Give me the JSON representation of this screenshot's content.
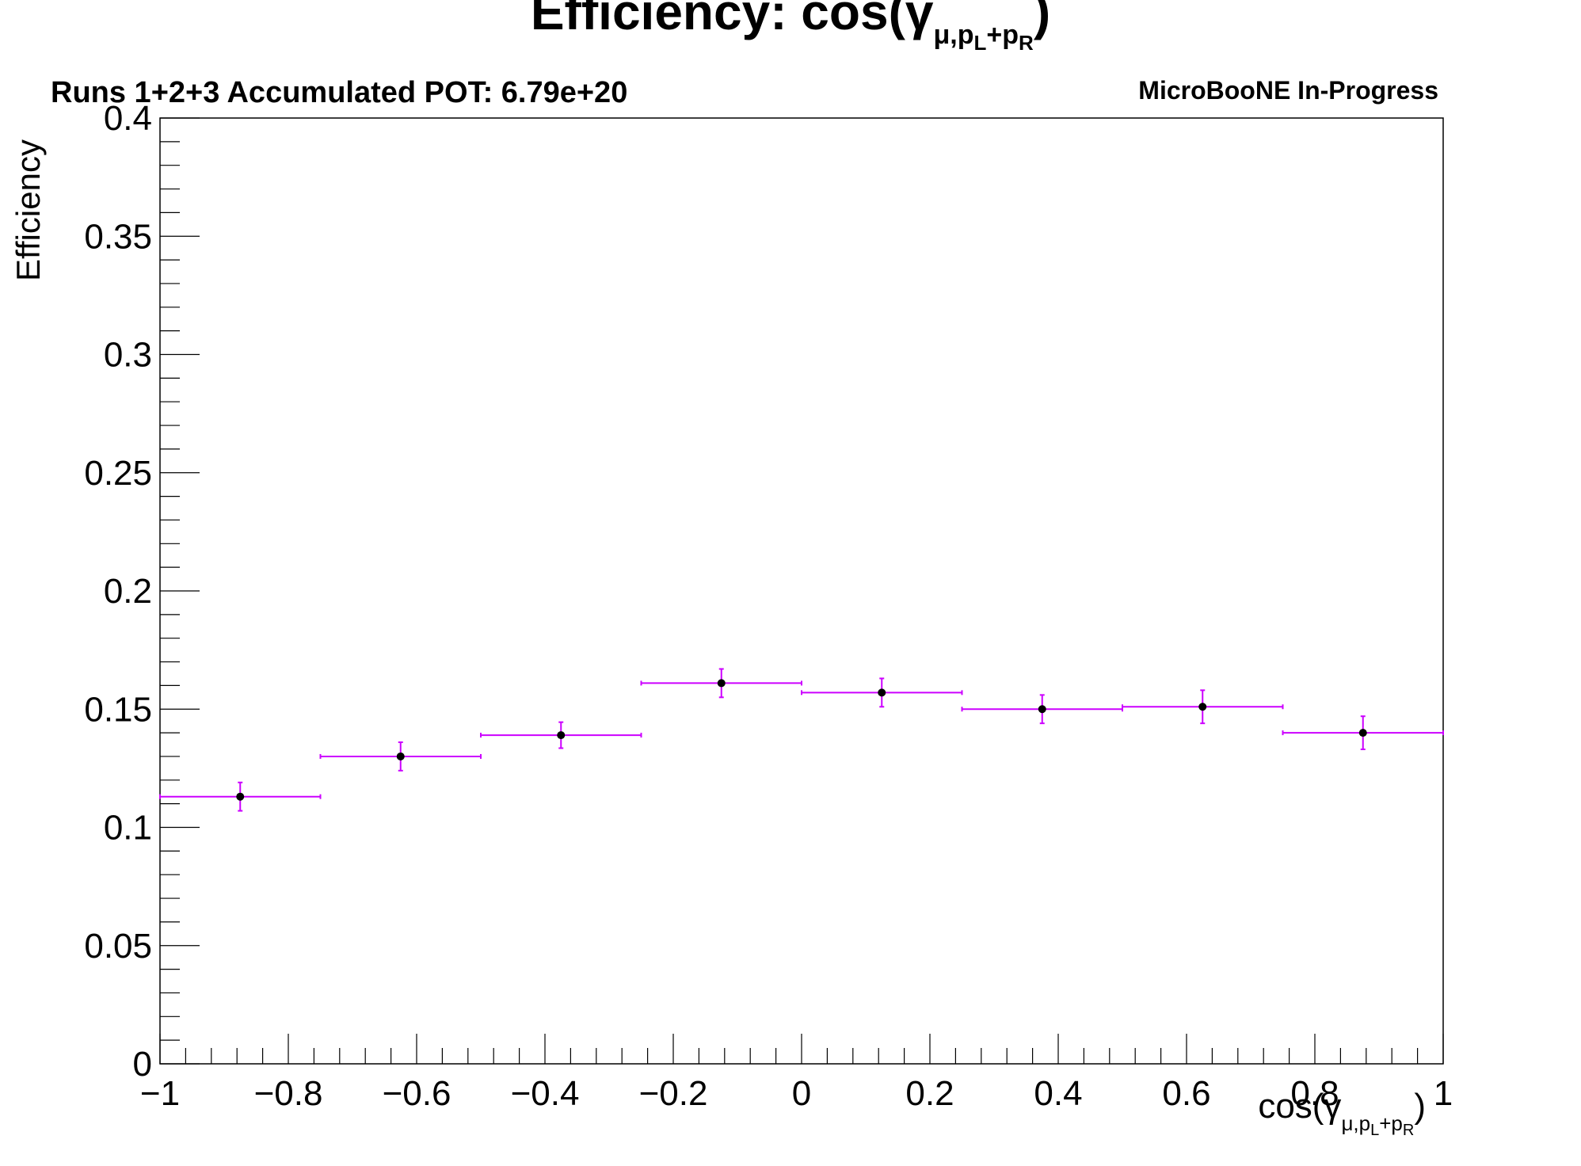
{
  "chart_data": {
    "type": "scatter",
    "title": {
      "main": "Efficiency: cos(γ",
      "sub": "μ,p",
      "sub_l": "L",
      "sub_plus": "+p",
      "sub_r": "R",
      "close": ")"
    },
    "subtitle": "Runs 1+2+3 Accumulated POT: 6.79e+20",
    "brand": "MicroBooNE In-Progress",
    "ylabel": "Efficiency",
    "xlabel": {
      "main": "cos(γ",
      "sub": "μ,p",
      "sub_l": "L",
      "sub_plus": "+p",
      "sub_r": "R",
      "close": ")"
    },
    "xlim": [
      -1,
      1
    ],
    "ylim": [
      0,
      0.4
    ],
    "x_ticks": [
      -1,
      -0.8,
      -0.6,
      -0.4,
      -0.2,
      0,
      0.2,
      0.4,
      0.6,
      0.8,
      1
    ],
    "x_tick_labels": [
      "−1",
      "−0.8",
      "−0.6",
      "−0.4",
      "−0.2",
      "0",
      "0.2",
      "0.4",
      "0.6",
      "0.8",
      "1"
    ],
    "y_ticks": [
      0,
      0.05,
      0.1,
      0.15,
      0.2,
      0.25,
      0.3,
      0.35,
      0.4
    ],
    "y_tick_labels": [
      "0",
      "0.05",
      "0.1",
      "0.15",
      "0.2",
      "0.25",
      "0.3",
      "0.35",
      "0.4"
    ],
    "grid": false,
    "series": [
      {
        "color": "#cc00ff",
        "marker_color": "#000000",
        "points": [
          {
            "x": -0.875,
            "x_low": -1.0,
            "x_high": -0.75,
            "y": 0.113,
            "y_err": 0.006
          },
          {
            "x": -0.625,
            "x_low": -0.75,
            "x_high": -0.5,
            "y": 0.13,
            "y_err": 0.006
          },
          {
            "x": -0.375,
            "x_low": -0.5,
            "x_high": -0.25,
            "y": 0.139,
            "y_err": 0.0055
          },
          {
            "x": -0.125,
            "x_low": -0.25,
            "x_high": 0.0,
            "y": 0.161,
            "y_err": 0.006
          },
          {
            "x": 0.125,
            "x_low": 0.0,
            "x_high": 0.25,
            "y": 0.157,
            "y_err": 0.006
          },
          {
            "x": 0.375,
            "x_low": 0.25,
            "x_high": 0.5,
            "y": 0.15,
            "y_err": 0.006
          },
          {
            "x": 0.625,
            "x_low": 0.5,
            "x_high": 0.75,
            "y": 0.151,
            "y_err": 0.007
          },
          {
            "x": 0.875,
            "x_low": 0.75,
            "x_high": 1.0,
            "y": 0.14,
            "y_err": 0.007
          }
        ]
      }
    ]
  }
}
